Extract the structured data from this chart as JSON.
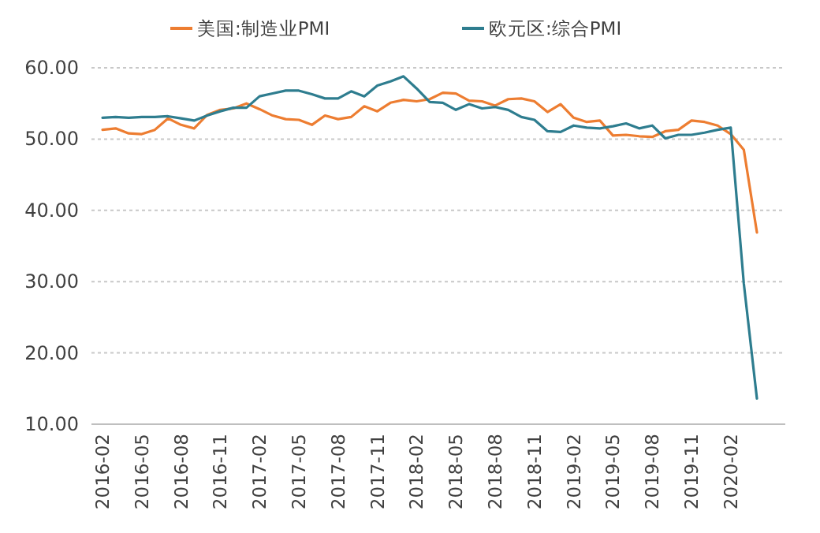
{
  "chart_data": {
    "type": "line",
    "categories": [
      "2016-02",
      null,
      null,
      "2016-05",
      null,
      null,
      "2016-08",
      null,
      null,
      "2016-11",
      null,
      null,
      "2017-02",
      null,
      null,
      "2017-05",
      null,
      null,
      "2017-08",
      null,
      null,
      "2017-11",
      null,
      null,
      "2018-02",
      null,
      null,
      "2018-05",
      null,
      null,
      "2018-08",
      null,
      null,
      "2018-11",
      null,
      null,
      "2019-02",
      null,
      null,
      "2019-05",
      null,
      null,
      "2019-08",
      null,
      null,
      "2019-11",
      null,
      null,
      "2020-02",
      null,
      null
    ],
    "series": [
      {
        "name": "美国:制造业PMI",
        "color": "#ed7d31",
        "values": [
          51.3,
          51.5,
          50.8,
          50.7,
          51.3,
          52.9,
          52.0,
          51.5,
          53.4,
          54.1,
          54.3,
          55.0,
          54.2,
          53.3,
          52.8,
          52.7,
          52.0,
          53.3,
          52.8,
          53.1,
          54.6,
          53.9,
          55.1,
          55.5,
          55.3,
          55.6,
          56.5,
          56.4,
          55.4,
          55.3,
          54.7,
          55.6,
          55.7,
          55.3,
          53.8,
          54.9,
          53.0,
          52.4,
          52.6,
          50.5,
          50.6,
          50.4,
          50.3,
          51.1,
          51.3,
          52.6,
          52.4,
          51.9,
          50.7,
          48.5,
          36.9
        ]
      },
      {
        "name": "欧元区:综合PMI",
        "color": "#2e7d8f",
        "values": [
          53.0,
          53.1,
          53.0,
          53.1,
          53.1,
          53.2,
          52.9,
          52.6,
          53.3,
          53.9,
          54.4,
          54.4,
          56.0,
          56.4,
          56.8,
          56.8,
          56.3,
          55.7,
          55.7,
          56.7,
          56.0,
          57.5,
          58.1,
          58.8,
          57.1,
          55.2,
          55.1,
          54.1,
          54.9,
          54.3,
          54.5,
          54.1,
          53.1,
          52.7,
          51.1,
          51.0,
          51.9,
          51.6,
          51.5,
          51.8,
          52.2,
          51.5,
          51.9,
          50.1,
          50.6,
          50.6,
          50.9,
          51.3,
          51.6,
          29.7,
          13.6
        ]
      }
    ],
    "ylim": [
      10,
      60
    ],
    "yticks": [
      {
        "value": 10,
        "label": "10.00"
      },
      {
        "value": 20,
        "label": "20.00"
      },
      {
        "value": 30,
        "label": "30.00"
      },
      {
        "value": 40,
        "label": "40.00"
      },
      {
        "value": 50,
        "label": "50.00"
      },
      {
        "value": 60,
        "label": "60.00"
      }
    ],
    "grid": "y",
    "legend": "top"
  }
}
